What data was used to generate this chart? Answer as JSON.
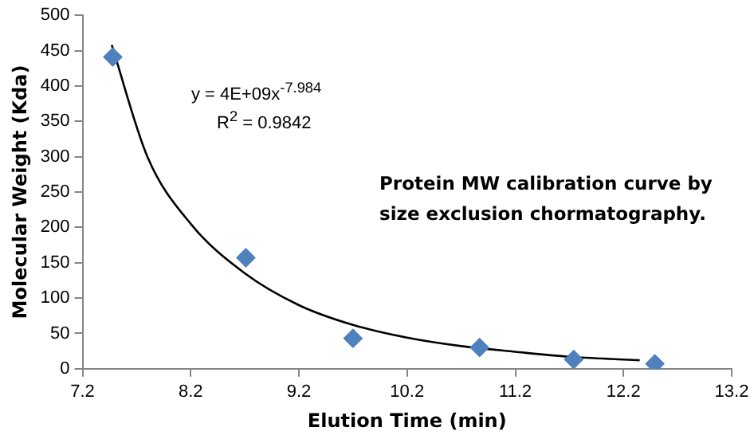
{
  "chart_data": {
    "type": "scatter",
    "xlabel": "Elution Time (min)",
    "ylabel": "Molecular Weight (Kda)",
    "series": [
      {
        "color": "#4f81bd",
        "marker": "diamond",
        "x": [
          7.48,
          8.71,
          9.7,
          10.87,
          11.74,
          12.49
        ],
        "values": [
          441,
          157,
          43,
          30,
          13,
          7
        ]
      },
      {
        "type": "line",
        "color": "#000000",
        "marker": "none",
        "x": [
          7.47,
          7.8,
          8.2,
          8.7,
          9.2,
          9.7,
          10.2,
          10.7,
          11.2,
          11.7,
          12.2,
          12.35
        ],
        "values": [
          458,
          300,
          205,
          135,
          90,
          62,
          44,
          32,
          24,
          17,
          13,
          12
        ]
      }
    ],
    "annotations": [
      "y = 4E+09x$^{-7.984}$",
      "R$^{2}$ = 0.9842",
      "Protein MW calibration curve by size exclusion chormatography."
    ],
    "xlim": [
      7.2,
      13.2
    ],
    "xticks": [
      7.2,
      8.2,
      9.2,
      10.2,
      11.2,
      12.2,
      13.2
    ],
    "ylim": [
      0,
      500
    ],
    "yticks": [
      0,
      50,
      100,
      150,
      200,
      250,
      300,
      350,
      400,
      450,
      500
    ],
    "grid": false,
    "legend": false
  }
}
